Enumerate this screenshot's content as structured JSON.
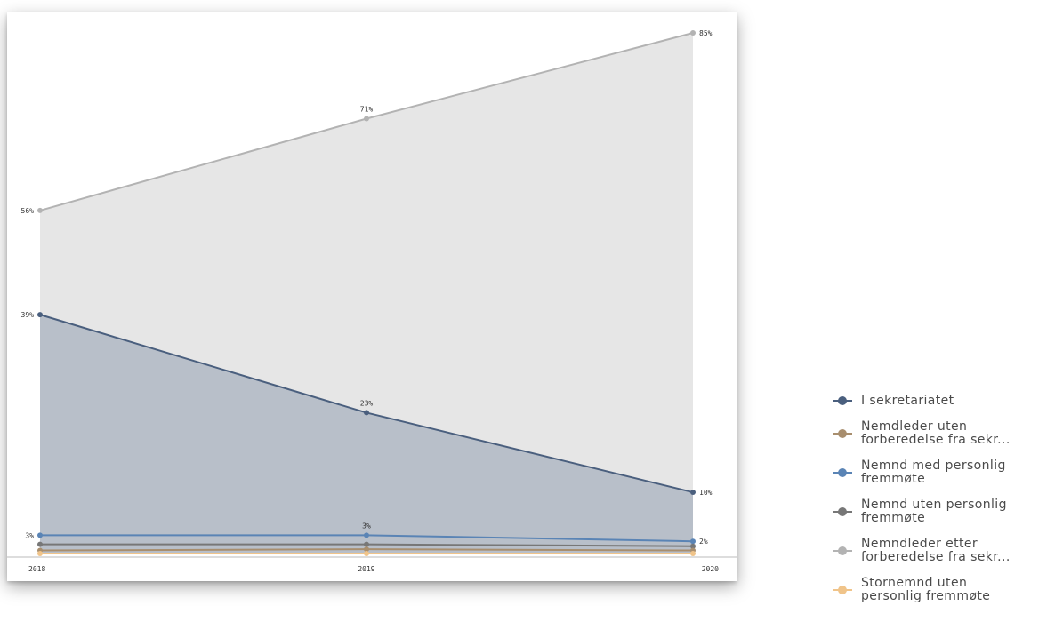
{
  "chart_data": {
    "type": "area",
    "x": [
      "2018",
      "2019",
      "2020"
    ],
    "ylim": [
      0,
      85
    ],
    "series": [
      {
        "name": "I sekretariatet",
        "values": [
          39,
          23,
          10
        ],
        "color": "#4a5f7e",
        "fill": "#b8bfc9"
      },
      {
        "name": "Nemdleder uten\nforberedelse fra sekr...",
        "values": [
          0.5,
          0.7,
          0.5
        ],
        "color": "#a88e6e"
      },
      {
        "name": "Nemnd med personlig\nfremmøte",
        "values": [
          3,
          3,
          2
        ],
        "color": "#5a84b5"
      },
      {
        "name": "Nemnd uten personlig\nfremmøte",
        "values": [
          1.5,
          1.5,
          1.2
        ],
        "color": "#777777"
      },
      {
        "name": "Nemndleder etter\nforberedelse fra sekr...",
        "values": [
          56,
          71,
          85
        ],
        "color": "#b3b3b3",
        "fill": "#e6e6e6"
      },
      {
        "name": "Stornemnd uten\npersonlig fremmøte",
        "values": [
          0,
          0,
          0
        ],
        "color": "#f0c48a"
      }
    ],
    "data_labels": [
      {
        "series": 4,
        "index": 0,
        "text": "56%"
      },
      {
        "series": 4,
        "index": 1,
        "text": "71%"
      },
      {
        "series": 4,
        "index": 2,
        "text": "85%"
      },
      {
        "series": 0,
        "index": 0,
        "text": "39%"
      },
      {
        "series": 0,
        "index": 1,
        "text": "23%"
      },
      {
        "series": 0,
        "index": 2,
        "text": "10%"
      },
      {
        "series": 2,
        "index": 0,
        "text": "3%"
      },
      {
        "series": 2,
        "index": 1,
        "text": "3%"
      },
      {
        "series": 2,
        "index": 2,
        "text": "2%"
      }
    ],
    "legend_position": "bottom-right",
    "grid": false
  }
}
